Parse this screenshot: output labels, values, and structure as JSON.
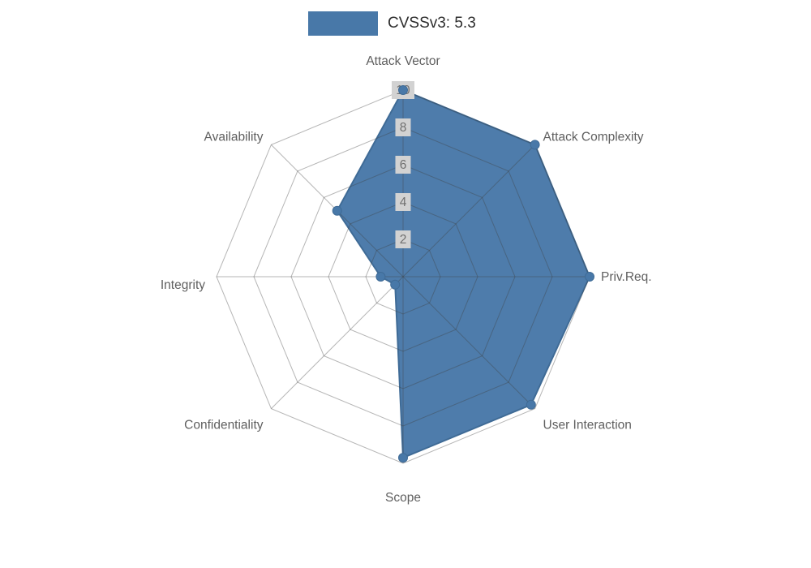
{
  "legend": {
    "label": "CVSSv3: 5.3"
  },
  "chart_data": {
    "type": "radar",
    "title": "CVSSv3: 5.3",
    "categories": [
      "Attack Vector",
      "Attack Complexity",
      "Priv.Req.",
      "User Interaction",
      "Scope",
      "Confidentiality",
      "Integrity",
      "Availability"
    ],
    "series": [
      {
        "name": "CVSSv3: 5.3",
        "values": [
          10,
          10,
          10,
          9.7,
          9.7,
          0.6,
          1.2,
          5
        ]
      }
    ],
    "ticks": [
      2,
      4,
      6,
      8,
      10
    ],
    "rlim": [
      0,
      10
    ],
    "grid": true,
    "legend_position": "top-center",
    "colors": {
      "series_fill": "#4878a8",
      "series_stroke": "#3f6b96",
      "grid_line": "#404040",
      "tick_box": "#d2d2d2",
      "tick_text": "#6f6f6f",
      "label_text": "#5f5f5f",
      "legend_text": "#2e2e2e"
    }
  }
}
